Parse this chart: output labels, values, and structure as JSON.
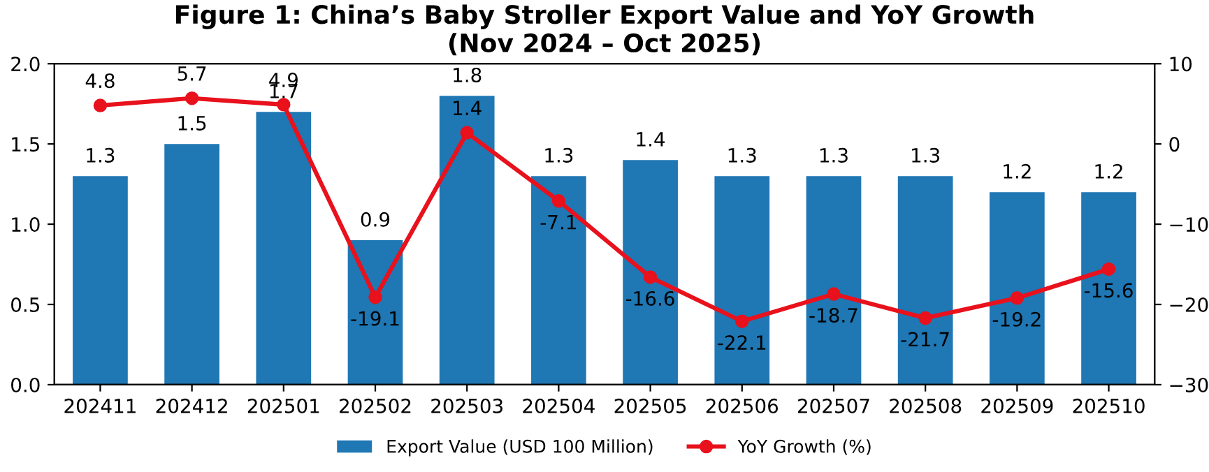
{
  "chart_data": {
    "type": "bar",
    "title": "Figure 1: China’s Baby Stroller Export Value and YoY Growth\n(Nov 2024 – Oct 2025)",
    "categories": [
      "202411",
      "202412",
      "202501",
      "202502",
      "202503",
      "202504",
      "202505",
      "202506",
      "202507",
      "202508",
      "202509",
      "202510"
    ],
    "series": [
      {
        "name": "Export Value (USD 100 Million)",
        "color": "#1f77b4",
        "values": [
          1.3,
          1.5,
          1.7,
          0.9,
          1.8,
          1.3,
          1.4,
          1.3,
          1.3,
          1.3,
          1.2,
          1.2
        ]
      },
      {
        "name": "YoY Growth (%)",
        "type": "line",
        "axis": "y2",
        "color": "#e8111c",
        "values": [
          4.8,
          5.7,
          4.9,
          -19.1,
          1.4,
          -7.1,
          -16.6,
          -22.1,
          -18.7,
          -21.7,
          -19.2,
          -15.6
        ]
      }
    ],
    "ylim": [
      0,
      2.0
    ],
    "yticks": [
      {
        "value": 0,
        "label": "0.0"
      },
      {
        "value": 0.5,
        "label": "0.5"
      },
      {
        "value": 1.0,
        "label": "1.0"
      },
      {
        "value": 1.5,
        "label": "1.5"
      },
      {
        "value": 2.0,
        "label": "2.0"
      }
    ],
    "y2lim": [
      -30,
      10
    ],
    "y2ticks": [
      {
        "value": -30,
        "label": "−30"
      },
      {
        "value": -20,
        "label": "−20"
      },
      {
        "value": -10,
        "label": "−10"
      },
      0,
      10
    ],
    "data_labels": true,
    "marker": "circle",
    "line_style": "solid",
    "grid": false,
    "legend": "bottom"
  }
}
